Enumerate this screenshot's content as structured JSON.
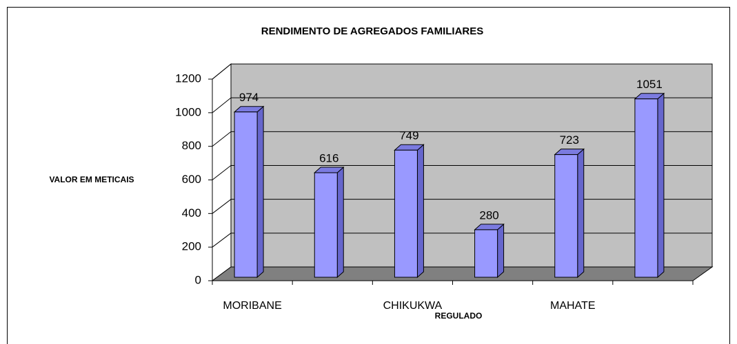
{
  "chart_data": {
    "type": "bar3d",
    "title": "RENDIMENTO DE AGREGADOS FAMILIARES",
    "y_label": "VALOR EM METICAIS",
    "x_label": "REGULADO",
    "categories": [
      "MORIBANE",
      null,
      "CHIKUKWA",
      null,
      "MAHATE",
      null
    ],
    "values": [
      974,
      616,
      749,
      280,
      723,
      1051
    ],
    "color": "#9999ff",
    "ylim": [
      0,
      1200
    ],
    "yticks": [
      0,
      200,
      400,
      600,
      800,
      1000,
      1200
    ],
    "grid": true
  }
}
